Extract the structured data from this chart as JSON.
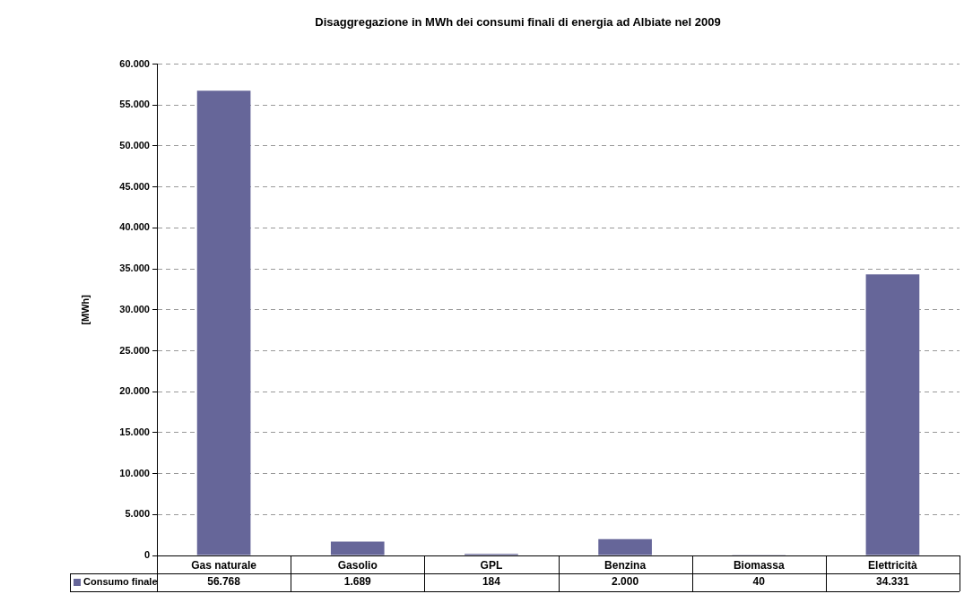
{
  "chart_data": {
    "type": "bar",
    "title": "Disaggregazione in MWh dei consumi finali di energia ad Albiate nel 2009",
    "ylabel": "[MWh]",
    "categories": [
      "Gas naturale",
      "Gasolio",
      "GPL",
      "Benzina",
      "Biomassa",
      "Elettricità"
    ],
    "series": [
      {
        "name": "Consumo finale",
        "color": "#666699",
        "values": [
          56768,
          1689,
          184,
          2000,
          40,
          34331
        ],
        "value_labels": [
          "56.768",
          "1.689",
          "184",
          "2.000",
          "40",
          "34.331"
        ]
      }
    ],
    "ylim": [
      0,
      60000
    ],
    "yticks": [
      {
        "value": 0,
        "label": "0"
      },
      {
        "value": 5000,
        "label": "5.000"
      },
      {
        "value": 10000,
        "label": "10.000"
      },
      {
        "value": 15000,
        "label": "15.000"
      },
      {
        "value": 20000,
        "label": "20.000"
      },
      {
        "value": 25000,
        "label": "25.000"
      },
      {
        "value": 30000,
        "label": "30.000"
      },
      {
        "value": 35000,
        "label": "35.000"
      },
      {
        "value": 40000,
        "label": "40.000"
      },
      {
        "value": 45000,
        "label": "45.000"
      },
      {
        "value": 50000,
        "label": "50.000"
      },
      {
        "value": 55000,
        "label": "55.000"
      },
      {
        "value": 60000,
        "label": "60.000"
      }
    ],
    "grid": "y",
    "legend": "bottom"
  }
}
